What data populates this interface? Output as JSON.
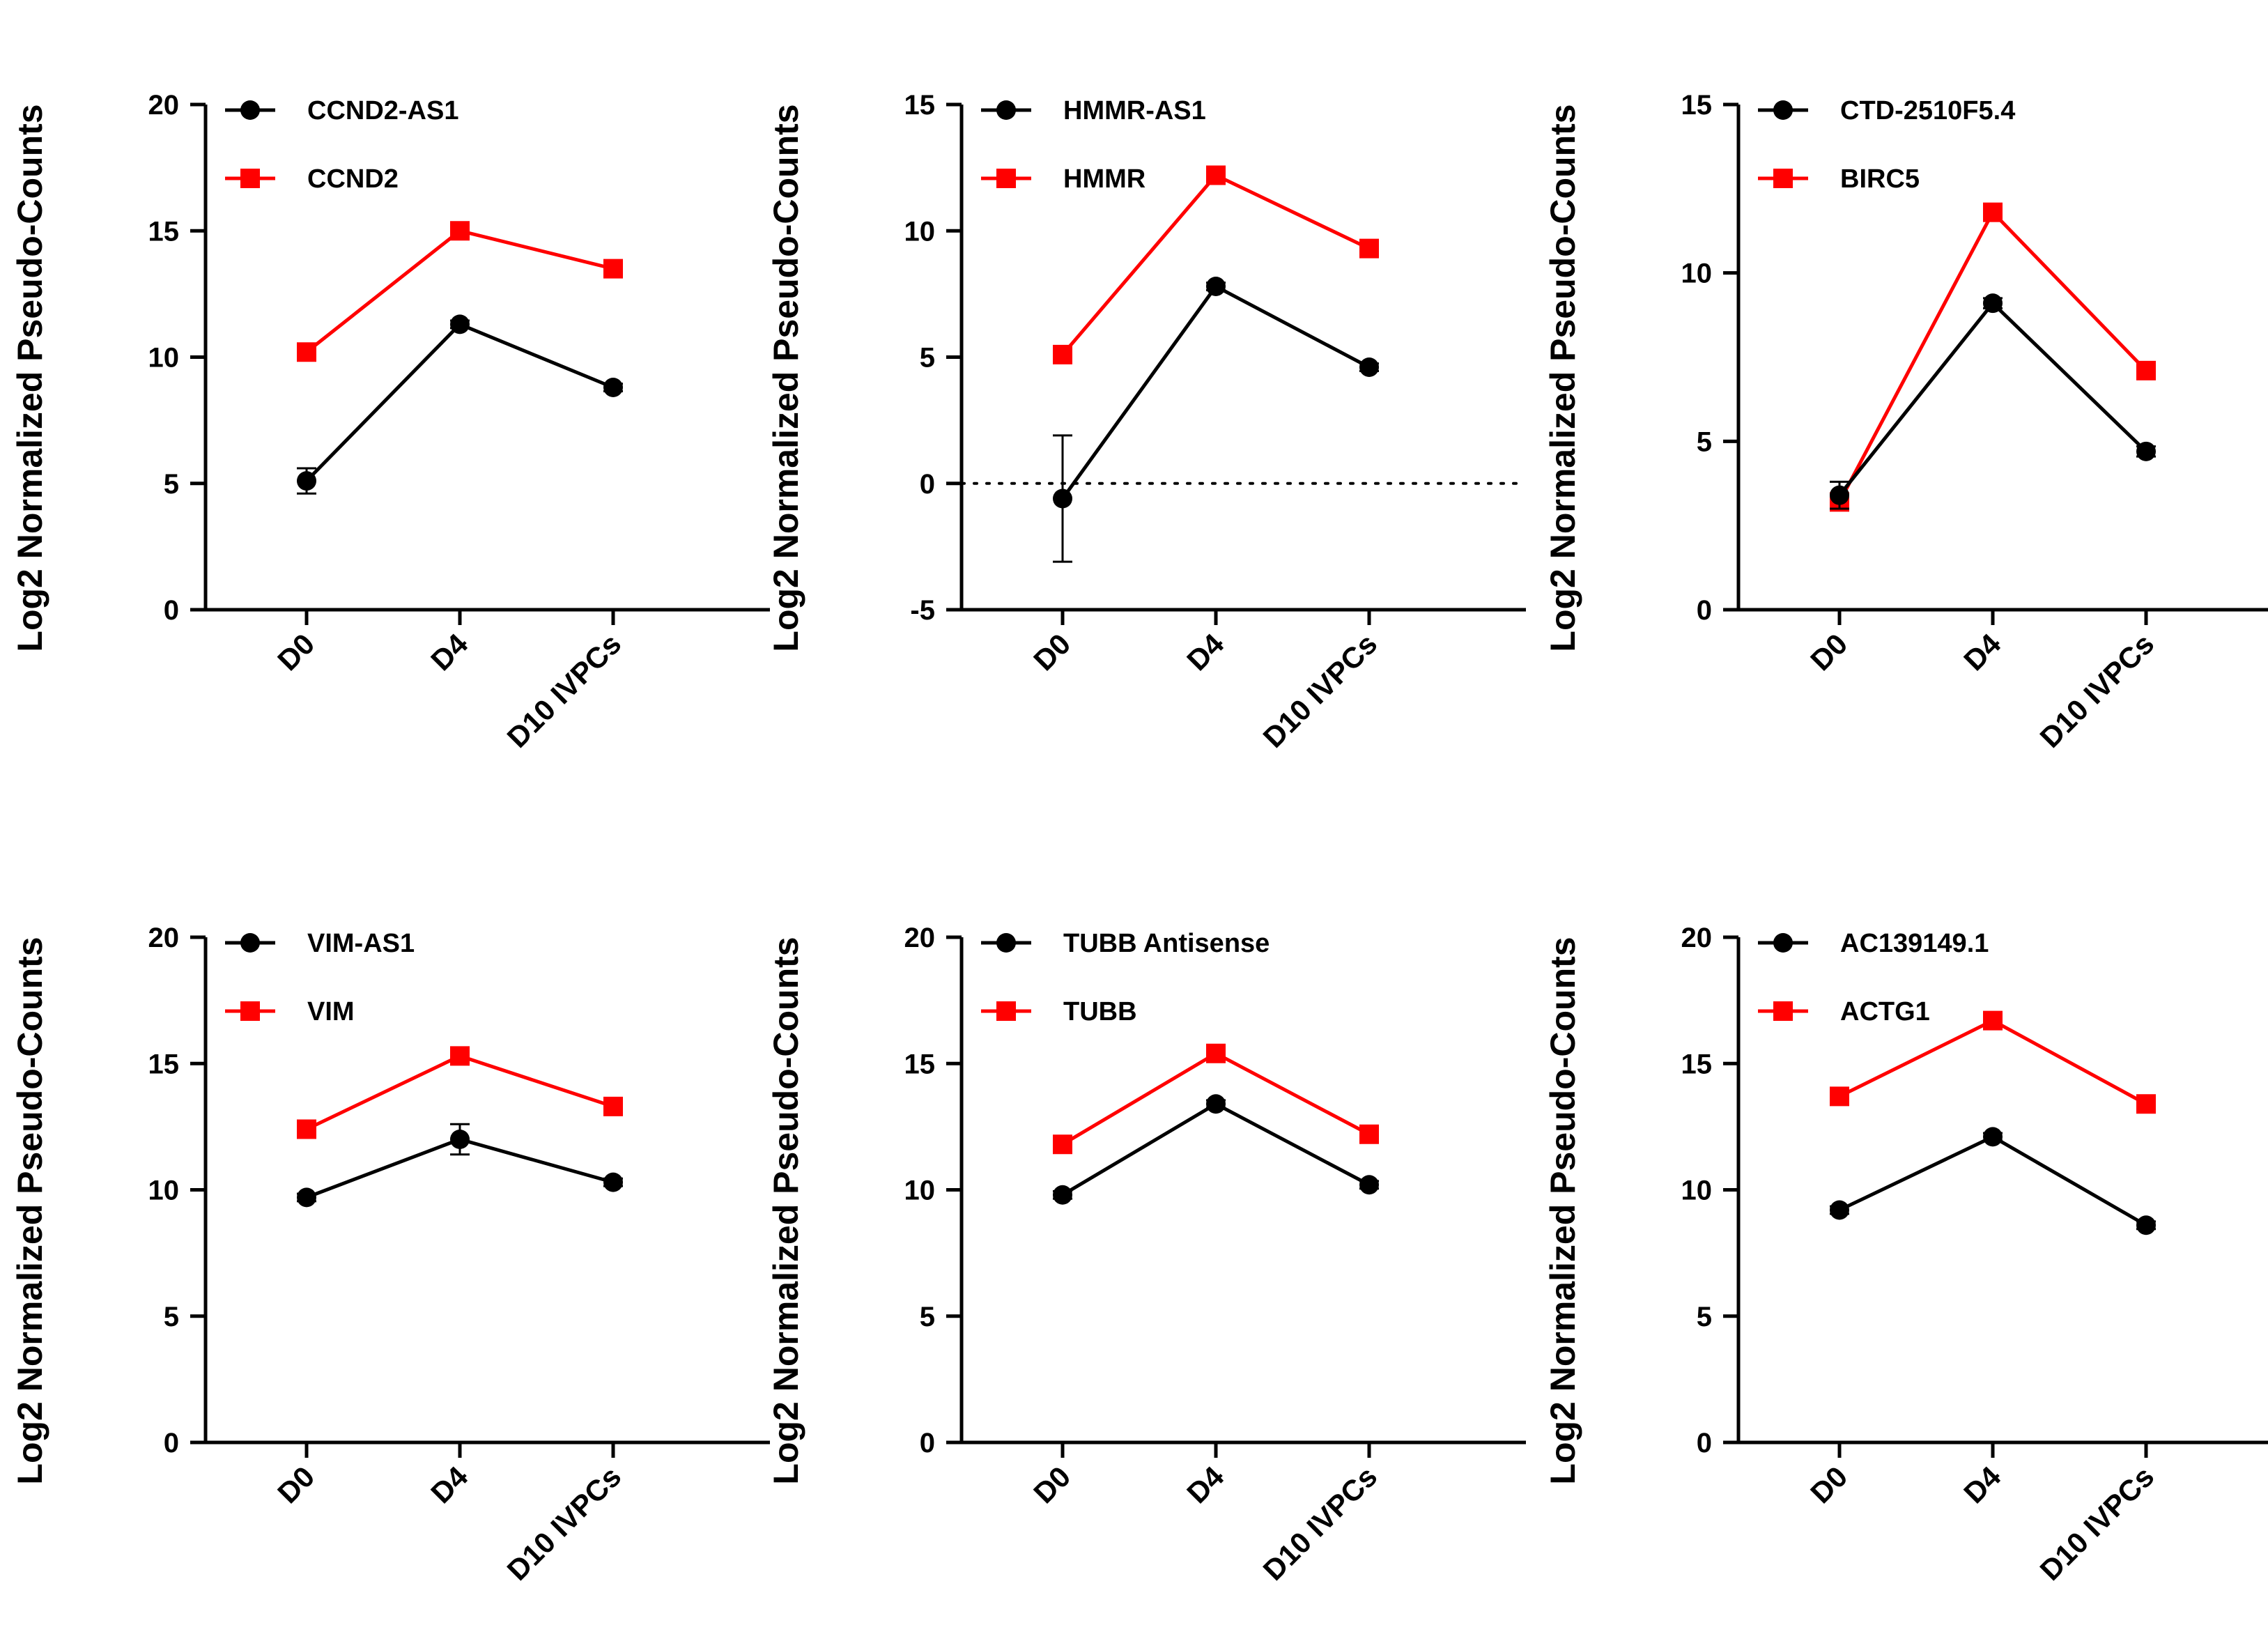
{
  "figure": {
    "colors": {
      "antisense": "#000000",
      "gene": "#ff0000"
    },
    "panels": [
      {
        "ylabel": "Log2 Normalized Pseudo-Counts",
        "y_ticks": [
          "0",
          "5",
          "10",
          "15",
          "20"
        ],
        "categories": [
          "D0",
          "D4",
          "D10 IVPCs"
        ],
        "legend": [
          "CCND2-AS1",
          "CCND2"
        ]
      },
      {
        "ylabel": "Log2 Normalized Pseudo-Counts",
        "y_ticks": [
          "-5",
          "0",
          "5",
          "10",
          "15"
        ],
        "categories": [
          "D0",
          "D4",
          "D10 IVPCs"
        ],
        "legend": [
          "HMMR-AS1",
          "HMMR"
        ]
      },
      {
        "ylabel": "Log2 Normalized Pseudo-Counts",
        "y_ticks": [
          "0",
          "5",
          "10",
          "15"
        ],
        "categories": [
          "D0",
          "D4",
          "D10 IVPCs"
        ],
        "legend": [
          "CTD-2510F5.4",
          "BIRC5"
        ]
      },
      {
        "ylabel": "Log2 Normalized Pseudo-Counts",
        "y_ticks": [
          "0",
          "5",
          "10",
          "15",
          "20"
        ],
        "categories": [
          "D0",
          "D4",
          "D10 IVPCs"
        ],
        "legend": [
          "VIM-AS1",
          "VIM"
        ]
      },
      {
        "ylabel": "Log2 Normalized Pseudo-Counts",
        "y_ticks": [
          "0",
          "5",
          "10",
          "15",
          "20"
        ],
        "categories": [
          "D0",
          "D4",
          "D10 IVPCs"
        ],
        "legend": [
          "TUBB Antisense",
          "TUBB"
        ]
      },
      {
        "ylabel": "Log2 Normalized Pseudo-Counts",
        "y_ticks": [
          "0",
          "5",
          "10",
          "15",
          "20"
        ],
        "categories": [
          "D0",
          "D4",
          "D10 IVPCs"
        ],
        "legend": [
          "AC139149.1",
          "ACTG1"
        ]
      }
    ]
  },
  "chart_data": [
    {
      "type": "line",
      "categories": [
        "D0",
        "D4",
        "D10 IVPCs"
      ],
      "ylabel": "Log2 Normalized Pseudo-Counts",
      "ylim": [
        0,
        20
      ],
      "y_ticks": [
        0,
        5,
        10,
        15,
        20
      ],
      "series": [
        {
          "name": "CCND2-AS1",
          "color": "#000000",
          "marker": "circle",
          "values": [
            5.1,
            11.3,
            8.8
          ],
          "errors": [
            0.5,
            0.15,
            0.15
          ]
        },
        {
          "name": "CCND2",
          "color": "#ff0000",
          "marker": "square",
          "values": [
            10.2,
            15.0,
            13.5
          ],
          "errors": [
            0,
            0,
            0
          ]
        }
      ]
    },
    {
      "type": "line",
      "categories": [
        "D0",
        "D4",
        "D10 IVPCs"
      ],
      "ylabel": "Log2 Normalized Pseudo-Counts",
      "ylim": [
        -5,
        15
      ],
      "y_ticks": [
        -5,
        0,
        5,
        10,
        15
      ],
      "reference_line": 0,
      "series": [
        {
          "name": "HMMR-AS1",
          "color": "#000000",
          "marker": "circle",
          "values": [
            -0.6,
            7.8,
            4.6
          ],
          "errors": [
            2.5,
            0.15,
            0.15
          ]
        },
        {
          "name": "HMMR",
          "color": "#ff0000",
          "marker": "square",
          "values": [
            5.1,
            12.2,
            9.3
          ],
          "errors": [
            0,
            0,
            0
          ]
        }
      ]
    },
    {
      "type": "line",
      "categories": [
        "D0",
        "D4",
        "D10 IVPCs"
      ],
      "ylabel": "Log2 Normalized Pseudo-Counts",
      "ylim": [
        0,
        15
      ],
      "y_ticks": [
        0,
        5,
        10,
        15
      ],
      "series": [
        {
          "name": "CTD-2510F5.4",
          "color": "#000000",
          "marker": "circle",
          "values": [
            3.4,
            9.1,
            4.7
          ],
          "errors": [
            0.4,
            0.15,
            0.15
          ]
        },
        {
          "name": "BIRC5",
          "color": "#ff0000",
          "marker": "square",
          "values": [
            3.2,
            11.8,
            7.1
          ],
          "errors": [
            0,
            0,
            0
          ]
        }
      ]
    },
    {
      "type": "line",
      "categories": [
        "D0",
        "D4",
        "D10 IVPCs"
      ],
      "ylabel": "Log2 Normalized Pseudo-Counts",
      "ylim": [
        0,
        20
      ],
      "y_ticks": [
        0,
        5,
        10,
        15,
        20
      ],
      "series": [
        {
          "name": "VIM-AS1",
          "color": "#000000",
          "marker": "circle",
          "values": [
            9.7,
            12.0,
            10.3
          ],
          "errors": [
            0.15,
            0.6,
            0.15
          ]
        },
        {
          "name": "VIM",
          "color": "#ff0000",
          "marker": "square",
          "values": [
            12.4,
            15.3,
            13.3
          ],
          "errors": [
            0,
            0,
            0
          ]
        }
      ]
    },
    {
      "type": "line",
      "categories": [
        "D0",
        "D4",
        "D10 IVPCs"
      ],
      "ylabel": "Log2 Normalized Pseudo-Counts",
      "ylim": [
        0,
        20
      ],
      "y_ticks": [
        0,
        5,
        10,
        15,
        20
      ],
      "series": [
        {
          "name": "TUBB Antisense",
          "color": "#000000",
          "marker": "circle",
          "values": [
            9.8,
            13.4,
            10.2
          ],
          "errors": [
            0.15,
            0.15,
            0.15
          ]
        },
        {
          "name": "TUBB",
          "color": "#ff0000",
          "marker": "square",
          "values": [
            11.8,
            15.4,
            12.2
          ],
          "errors": [
            0,
            0,
            0
          ]
        }
      ]
    },
    {
      "type": "line",
      "categories": [
        "D0",
        "D4",
        "D10 IVPCs"
      ],
      "ylabel": "Log2 Normalized Pseudo-Counts",
      "ylim": [
        0,
        20
      ],
      "y_ticks": [
        0,
        5,
        10,
        15,
        20
      ],
      "series": [
        {
          "name": "AC139149.1",
          "color": "#000000",
          "marker": "circle",
          "values": [
            9.2,
            12.1,
            8.6
          ],
          "errors": [
            0.15,
            0.15,
            0.15
          ]
        },
        {
          "name": "ACTG1",
          "color": "#ff0000",
          "marker": "square",
          "values": [
            13.7,
            16.7,
            13.4
          ],
          "errors": [
            0,
            0,
            0
          ]
        }
      ]
    }
  ]
}
